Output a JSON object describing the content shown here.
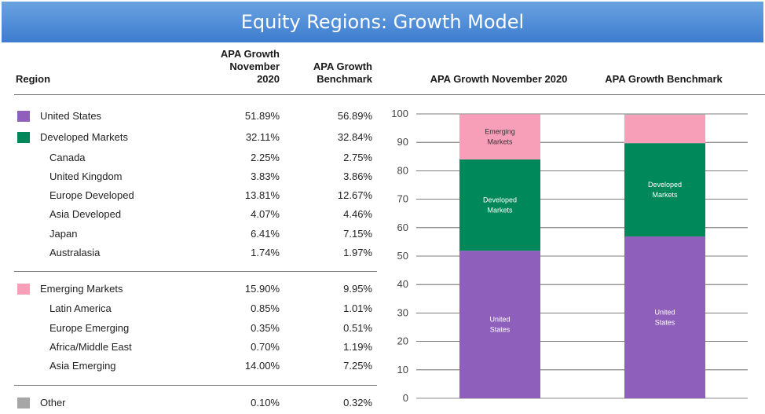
{
  "title": "Equity Regions: Growth Model",
  "table": {
    "headers": {
      "region": "Region",
      "col1": [
        "APA Growth",
        "November",
        "2020"
      ],
      "col2": [
        "APA Growth",
        "Benchmark"
      ]
    },
    "rows": [
      {
        "label": "United States",
        "v1": "51.89%",
        "v2": "56.89%",
        "color": "#8e5fbb",
        "sub": false
      },
      {
        "label": "Developed Markets",
        "v1": "32.11%",
        "v2": "32.84%",
        "color": "#00875a",
        "sub": false
      },
      {
        "label": "Canada",
        "v1": "2.25%",
        "v2": "2.75%",
        "sub": true
      },
      {
        "label": "United Kingdom",
        "v1": "3.83%",
        "v2": "3.86%",
        "sub": true
      },
      {
        "label": "Europe Developed",
        "v1": "13.81%",
        "v2": "12.67%",
        "sub": true
      },
      {
        "label": "Asia Developed",
        "v1": "4.07%",
        "v2": "4.46%",
        "sub": true
      },
      {
        "label": "Japan",
        "v1": "6.41%",
        "v2": "7.15%",
        "sub": true
      },
      {
        "label": "Australasia",
        "v1": "1.74%",
        "v2": "1.97%",
        "sub": true
      },
      {
        "label": "Emerging Markets",
        "v1": "15.90%",
        "v2": "9.95%",
        "color": "#f79fb8",
        "sub": false
      },
      {
        "label": "Latin America",
        "v1": "0.85%",
        "v2": "1.01%",
        "sub": true
      },
      {
        "label": "Europe Emerging",
        "v1": "0.35%",
        "v2": "0.51%",
        "sub": true
      },
      {
        "label": "Africa/Middle East",
        "v1": "0.70%",
        "v2": "1.19%",
        "sub": true
      },
      {
        "label": "Asia Emerging",
        "v1": "14.00%",
        "v2": "7.25%",
        "sub": true
      },
      {
        "label": "Other",
        "v1": "0.10%",
        "v2": "0.32%",
        "color": "#a6a6a6",
        "sub": false
      }
    ]
  },
  "chart_data": {
    "type": "bar",
    "stacked": true,
    "categories": [
      "APA Growth November 2020",
      "APA Growth Benchmark"
    ],
    "series": [
      {
        "name": "United States",
        "label": [
          "United",
          "States"
        ],
        "values": [
          51.89,
          56.89
        ],
        "color": "#8e5fbb"
      },
      {
        "name": "Developed Markets",
        "label": [
          "Developed",
          "Markets"
        ],
        "values": [
          32.11,
          32.84
        ],
        "color": "#00875a"
      },
      {
        "name": "Emerging Markets",
        "label": [
          "Emerging",
          "Markets"
        ],
        "values": [
          15.9,
          9.95
        ],
        "color": "#f79fb8"
      },
      {
        "name": "Other",
        "label": [],
        "values": [
          0.1,
          0.32
        ],
        "color": "#a6a6a6"
      }
    ],
    "segment_labels_visible": [
      [
        true,
        true
      ],
      [
        true,
        true
      ],
      [
        true,
        false
      ],
      [
        false,
        false
      ]
    ],
    "ylim": [
      0,
      100
    ],
    "yticks": [
      0,
      10,
      20,
      30,
      40,
      50,
      60,
      70,
      80,
      90,
      100
    ],
    "grid": true,
    "legend": "none",
    "xlabel": "",
    "ylabel": ""
  }
}
